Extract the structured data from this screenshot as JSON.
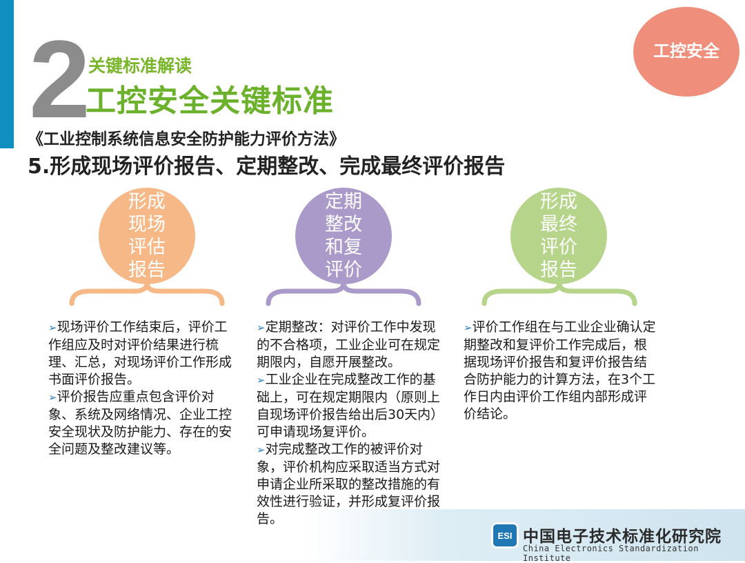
{
  "header": {
    "number": "2",
    "subtitle": "关键标准解读",
    "title": "工控安全关键标准",
    "badge": "工控安全"
  },
  "doc_title": "《工业控制系统信息安全防护能力评价方法》",
  "section_title": "5.形成现场评价报告、定期整改、完成最终评价报告",
  "steps": [
    {
      "label": "形成现场评估报告",
      "color": "#f6b886",
      "bullets": [
        "现场评价工作结束后，评价工作组应及时对评价结果进行梳理、汇总，对现场评价工作形成书面评价报告。",
        "评价报告应重点包含评价对象、系统及网络情况、企业工控安全现状及防护能力、存在的安全问题及整改建议等。"
      ]
    },
    {
      "label": "定期整改和复评价",
      "color": "#a99ac9",
      "bullets": [
        "定期整改：对评价工作中发现的不合格项，工业企业可在规定期限内，自愿开展整改。",
        "工业企业在完成整改工作的基础上，可在规定期限内（原则上自现场评价报告给出后30天内）可申请现场复评价。",
        "对完成整改工作的被评价对象，评价机构应采取适当方式对申请企业所采取的整改措施的有效性进行验证，并形成复评价报告。"
      ]
    },
    {
      "label": "形成最终评价报告",
      "color": "#b6d48a",
      "bullets": [
        "评价工作组在与工业企业确认定期整改和复评价工作完成后，根据现场评价报告和复评价报告结合防护能力的计算方法，在3个工作日内由评价工作组内部形成评价结论。"
      ]
    }
  ],
  "footer": {
    "logo_text": "ESI",
    "org_cn": "中国电子技术标准化研究院",
    "org_en": "China Electronics Standardization Institute"
  },
  "icons": {
    "bullet": "arrow-bullet-icon"
  }
}
